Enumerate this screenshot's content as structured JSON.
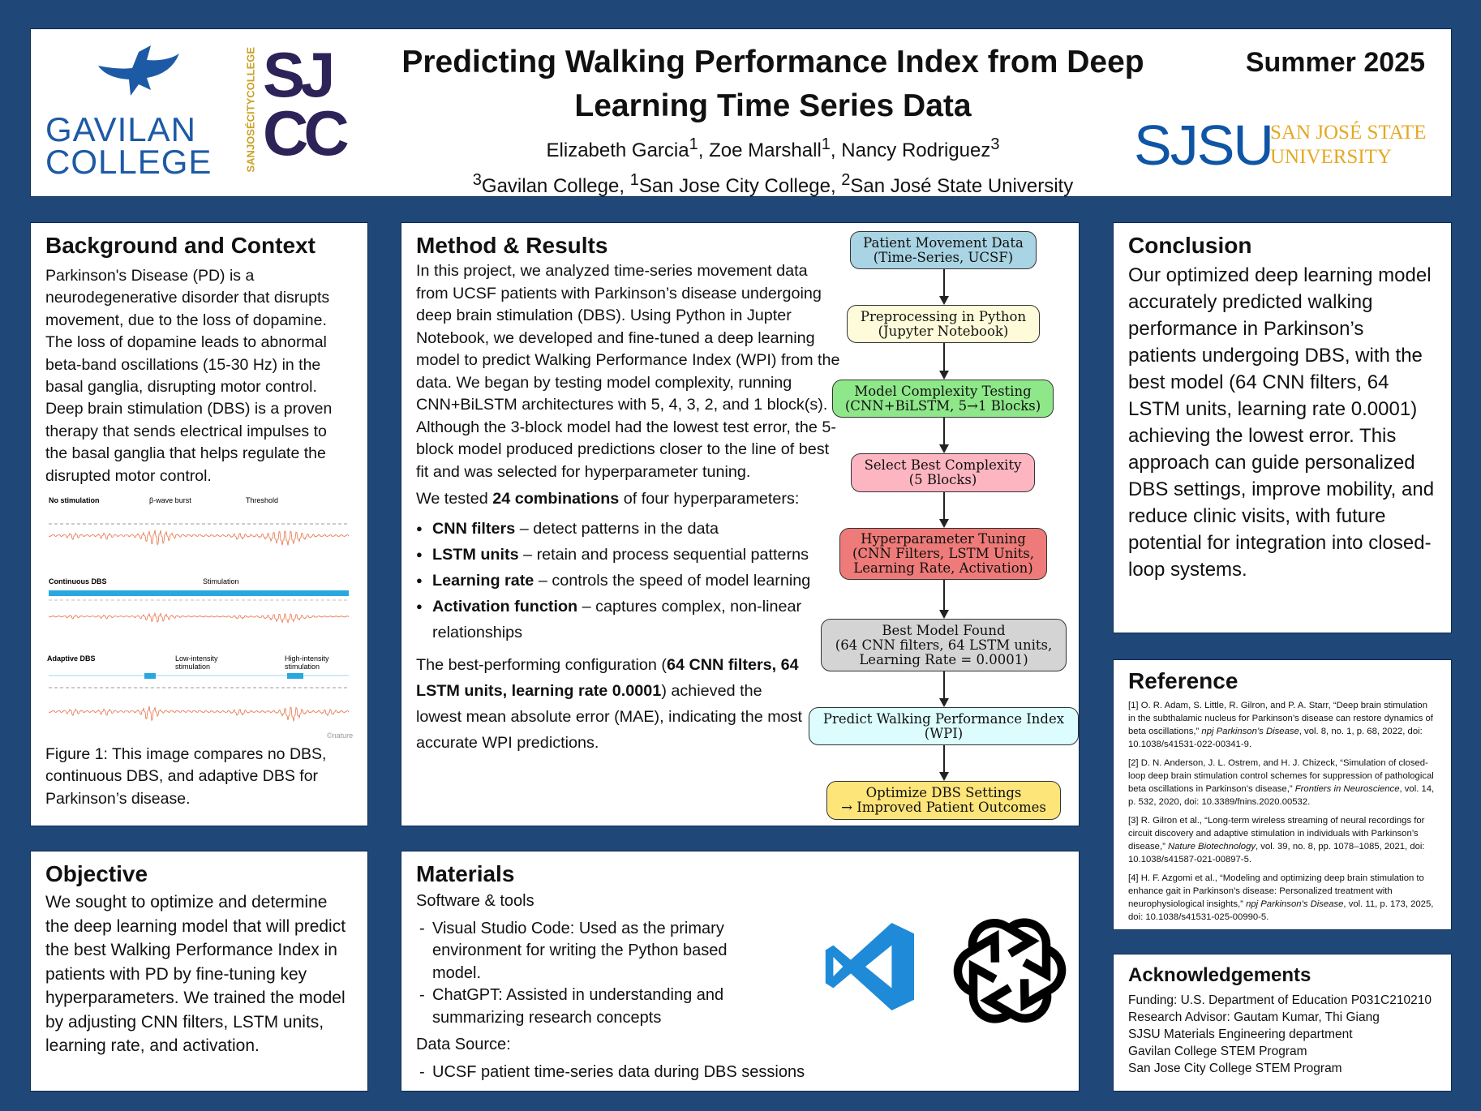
{
  "header": {
    "title": "Predicting Walking Performance Index from Deep Learning Time Series Data",
    "authors": [
      {
        "name": "Elizabeth Garcia",
        "sup": "1"
      },
      {
        "name": "Zoe Marshall",
        "sup": "1"
      },
      {
        "name": "Nancy Rodriguez",
        "sup": "3"
      }
    ],
    "affiliations": [
      {
        "sup": "3",
        "name": "Gavilan College"
      },
      {
        "sup": "1",
        "name": "San Jose City College"
      },
      {
        "sup": "2",
        "name": "San José State University"
      }
    ],
    "season": "Summer 2025",
    "logos": {
      "gavilan": [
        "GAVILAN",
        "COLLEGE"
      ],
      "sjcc_side": "SANJOSÉCITYCOLLEGE",
      "sjcc": [
        "SJ",
        "CC"
      ],
      "sjsu": "SJSU",
      "sjsu_name": [
        "SAN JOSÉ STATE",
        "UNIVERSITY"
      ]
    }
  },
  "background": {
    "heading": "Background and Context",
    "text": "Parkinson's Disease (PD) is a neurodegenerative disorder that disrupts movement, due to the loss of dopamine. The loss of dopamine leads to abnormal beta-band oscillations (15-30 Hz) in the basal ganglia, disrupting motor control. Deep brain stimulation (DBS) is a proven therapy that sends electrical impulses to the basal ganglia that helps regulate the disrupted motor control.",
    "figure_labels": {
      "no_stim": "No stimulation",
      "burst": "β-wave burst",
      "threshold": "Threshold",
      "continuous": "Continuous DBS",
      "stimulation": "Stimulation",
      "adaptive": "Adaptive DBS",
      "low": [
        "Low-intensity",
        "stimulation"
      ],
      "high": [
        "High-intensity",
        "stimulation"
      ],
      "credit": "©nature"
    },
    "caption": "Figure 1: This image compares no DBS, continuous DBS, and adaptive DBS for Parkinson’s disease.",
    "colors": {
      "wave": "#e8724a",
      "stim": "#29a8e0"
    }
  },
  "method": {
    "heading": "Method & Results",
    "intro": "In this project, we analyzed time-series movement data from UCSF patients with Parkinson’s disease undergoing deep brain stimulation (DBS). Using Python in Jupter Notebook, we developed and fine-tuned a deep learning model to predict Walking Performance Index (WPI) from the data. We began by testing model complexity, running CNN+BiLSTM architectures with 5, 4, 3, 2, and 1 block(s). Although the 3-block model had the lowest test error, the 5-block model produced predictions closer to the line of best fit and was selected for hyperparameter tuning.",
    "tested_pre": "We tested ",
    "tested_bold": "24 combinations",
    "tested_post": " of four hyperparameters:",
    "bullets": [
      {
        "b": "CNN filters",
        "t": " – detect patterns in the data"
      },
      {
        "b": "LSTM units",
        "t": " – retain and process sequential patterns"
      },
      {
        "b": "Learning rate",
        "t": " – controls the speed of model learning"
      },
      {
        "b": "Activation function",
        "t": " – captures complex, non-linear relationships"
      }
    ],
    "result_pre": "The best-performing configuration (",
    "result_bold": "64 CNN filters, 64 LSTM units, learning rate 0.0001",
    "result_post": ") achieved the lowest mean absolute error (MAE), indicating the most accurate WPI predictions.",
    "flow": [
      {
        "lines": [
          "Patient Movement Data",
          "(Time-Series, UCSF)"
        ],
        "color": "#a9d4e3"
      },
      {
        "lines": [
          "Preprocessing in Python",
          "(Jupyter Notebook)"
        ],
        "color": "#fdfbd9"
      },
      {
        "lines": [
          "Model Complexity Testing",
          "(CNN+BiLSTM, 5→1 Blocks)"
        ],
        "color": "#8ee88a"
      },
      {
        "lines": [
          "Select Best Complexity",
          "(5 Blocks)"
        ],
        "color": "#fdb6c1"
      },
      {
        "lines": [
          "Hyperparameter Tuning",
          "(CNN Filters, LSTM Units,",
          "Learning Rate, Activation)"
        ],
        "color": "#ee7b79"
      },
      {
        "lines": [
          "Best Model Found",
          "(64 CNN filters, 64 LSTM units,",
          "Learning Rate = 0.0001)"
        ],
        "color": "#d4d4d4"
      },
      {
        "lines": [
          "Predict Walking Performance Index",
          "(WPI)"
        ],
        "color": "#dcfcfd"
      },
      {
        "lines": [
          "Optimize DBS Settings",
          "→ Improved Patient Outcomes"
        ],
        "color": "#fde57a"
      }
    ]
  },
  "conclusion": {
    "heading": "Conclusion",
    "text": "Our optimized deep learning model accurately predicted walking performance in Parkinson’s patients undergoing DBS, with the best model (64 CNN filters, 64 LSTM units, learning rate 0.0001) achieving the lowest error. This approach can guide personalized DBS settings, improve mobility, and reduce clinic visits, with future potential for integration into closed-loop systems."
  },
  "reference": {
    "heading": "Reference",
    "items": [
      {
        "pre": "[1] O. R. Adam, S. Little, R. Gilron, and P. A. Starr, “Deep brain stimulation in the subthalamic nucleus for Parkinson’s disease can restore dynamics of beta oscillations,” ",
        "it": "npj Parkinson’s Disease",
        "post": ", vol. 8, no. 1, p. 68, 2022, doi: 10.1038/s41531-022-00341-9."
      },
      {
        "pre": "[2] D. N. Anderson, J. L. Ostrem, and H. J. Chizeck, “Simulation of closed-loop deep brain stimulation control schemes for suppression of pathological beta oscillations in Parkinson’s disease,” ",
        "it": "Frontiers in Neuroscience",
        "post": ", vol. 14, p. 532, 2020, doi: 10.3389/fnins.2020.00532."
      },
      {
        "pre": "[3] R. Gilron et al., “Long-term wireless streaming of neural recordings for circuit discovery and adaptive stimulation in individuals with Parkinson’s disease,” ",
        "it": "Nature Biotechnology",
        "post": ", vol. 39, no. 8, pp. 1078–1085, 2021, doi: 10.1038/s41587-021-00897-5."
      },
      {
        "pre": "[4] H. F. Azgomi et al., “Modeling and optimizing deep brain stimulation to enhance gait in Parkinson’s disease: Personalized treatment with neurophysiological insights,” ",
        "it": "npj Parkinson’s Disease",
        "post": ", vol. 11, p. 173, 2025, doi: 10.1038/s41531-025-00990-5."
      }
    ]
  },
  "acknowledgements": {
    "heading": "Acknowledgements",
    "lines": [
      "Funding: U.S. Department of Education P031C210210",
      "Research Advisor: Gautam Kumar, Thi Giang",
      "SJSU Materials Engineering department",
      "Gavilan College STEM Program",
      "San Jose City College STEM Program"
    ]
  },
  "objective": {
    "heading": "Objective",
    "text": "We sought to optimize and determine the deep learning model that will predict the best Walking Performance Index in patients with PD by fine-tuning key hyperparameters. We trained the model by adjusting CNN filters, LSTM units, learning rate, and activation."
  },
  "materials": {
    "heading": "Materials",
    "software_label": "Software & tools",
    "software": [
      "Visual Studio Code: Used as the primary environment for writing the Python based model.",
      "ChatGPT: Assisted in understanding and summarizing research concepts"
    ],
    "data_label": "Data Source:",
    "data": [
      "UCSF patient time-series data during DBS sessions"
    ]
  }
}
